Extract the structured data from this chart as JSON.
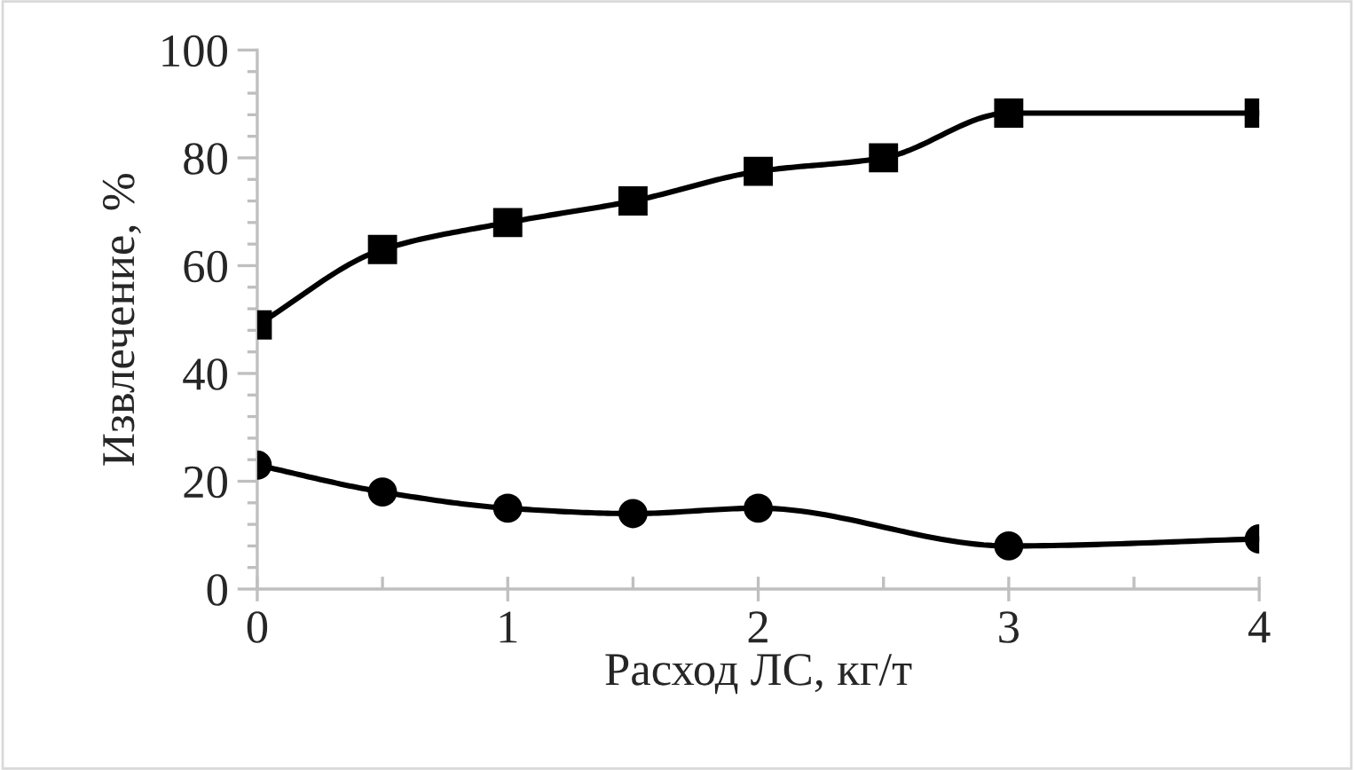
{
  "chart_data": {
    "type": "line",
    "xlabel": "Расход ЛС, кг/т",
    "ylabel": "Извлечение, %",
    "xlim": [
      0,
      4
    ],
    "xticks": [
      0,
      1,
      2,
      3,
      4
    ],
    "ylim": [
      0,
      100
    ],
    "yticks": [
      0,
      20,
      40,
      60,
      80,
      100
    ],
    "grid": false,
    "legend": false,
    "series": [
      {
        "color": "#000000",
        "marker": "square",
        "x": [
          0,
          0.5,
          1,
          1.5,
          2,
          2.5,
          3,
          4
        ],
        "values": [
          49,
          63,
          68,
          72,
          77.5,
          80,
          88.3,
          88.3
        ]
      },
      {
        "color": "#000000",
        "marker": "circle",
        "x": [
          0,
          0.5,
          1,
          1.5,
          2,
          3,
          4
        ],
        "values": [
          23,
          18,
          15,
          14,
          15,
          8,
          9.3
        ]
      }
    ]
  }
}
